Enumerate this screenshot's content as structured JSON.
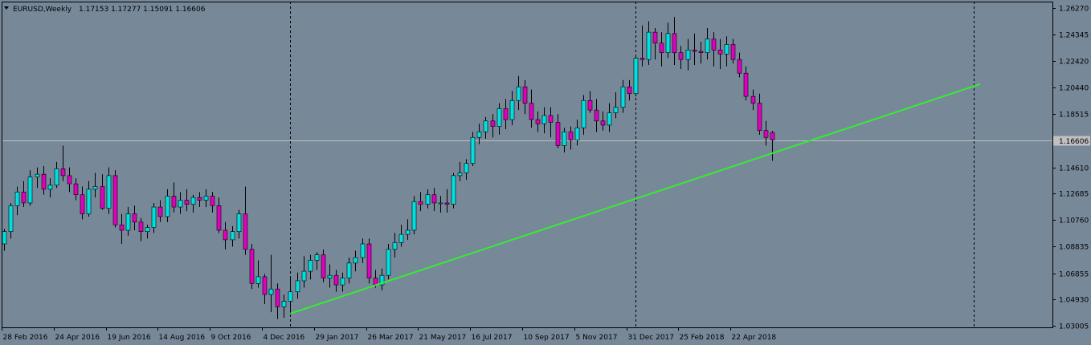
{
  "header": {
    "symbol": "EURUSD,Weekly",
    "ohlc": "1.17153 1.17277 1.15091 1.16606"
  },
  "colors": {
    "background": "#778899",
    "grid": "#000000",
    "bull": "#00e0e0",
    "bear": "#e000c0",
    "wick": "#000000",
    "trendline": "#33ee33",
    "price_line": "#c0c0c0",
    "axis_text": "#000000"
  },
  "chart_data": {
    "type": "candlestick",
    "title": "EURUSD,Weekly",
    "y_ticks": [
      "1.26270",
      "1.24345",
      "1.22420",
      "1.20440",
      "1.18515",
      "1.16606",
      "1.14610",
      "1.12685",
      "1.10760",
      "1.08835",
      "1.06855",
      "1.04930",
      "1.03005"
    ],
    "ylim": [
      1.0301,
      1.2627
    ],
    "current_price": 1.16606,
    "current_price_label": "1.16606",
    "x_ticks": [
      {
        "label": "28 Feb 2016",
        "index": 0
      },
      {
        "label": "24 Apr 2016",
        "index": 8
      },
      {
        "label": "19 Jun 2016",
        "index": 16
      },
      {
        "label": "14 Aug 2016",
        "index": 24
      },
      {
        "label": "9 Oct 2016",
        "index": 32
      },
      {
        "label": "4 Dec 2016",
        "index": 40
      },
      {
        "label": "29 Jan 2017",
        "index": 48
      },
      {
        "label": "26 Mar 2017",
        "index": 56
      },
      {
        "label": "21 May 2017",
        "index": 64
      },
      {
        "label": "16 Jul 2017",
        "index": 72
      },
      {
        "label": "10 Sep 2017",
        "index": 80
      },
      {
        "label": "5 Nov 2017",
        "index": 88
      },
      {
        "label": "31 Dec 2017",
        "index": 96
      },
      {
        "label": "25 Feb 2018",
        "index": 104
      },
      {
        "label": "22 Apr 2018",
        "index": 112
      }
    ],
    "period_separators": [
      44,
      97,
      149
    ],
    "trendline": {
      "from": {
        "index": 44,
        "price": 1.039
      },
      "to": {
        "index": 150,
        "price": 1.207
      }
    },
    "candles": [
      [
        1.09,
        1.101,
        1.085,
        1.099
      ],
      [
        1.099,
        1.12,
        1.094,
        1.118
      ],
      [
        1.118,
        1.132,
        1.111,
        1.128
      ],
      [
        1.128,
        1.136,
        1.117,
        1.12
      ],
      [
        1.12,
        1.144,
        1.118,
        1.139
      ],
      [
        1.139,
        1.146,
        1.131,
        1.141
      ],
      [
        1.141,
        1.147,
        1.126,
        1.13
      ],
      [
        1.13,
        1.138,
        1.124,
        1.133
      ],
      [
        1.133,
        1.15,
        1.131,
        1.145
      ],
      [
        1.145,
        1.162,
        1.136,
        1.14
      ],
      [
        1.14,
        1.146,
        1.128,
        1.134
      ],
      [
        1.134,
        1.138,
        1.122,
        1.126
      ],
      [
        1.126,
        1.132,
        1.108,
        1.112
      ],
      [
        1.112,
        1.136,
        1.11,
        1.13
      ],
      [
        1.13,
        1.142,
        1.124,
        1.132
      ],
      [
        1.132,
        1.141,
        1.115,
        1.116
      ],
      [
        1.116,
        1.146,
        1.112,
        1.14
      ],
      [
        1.14,
        1.144,
        1.102,
        1.104
      ],
      [
        1.104,
        1.112,
        1.09,
        1.1
      ],
      [
        1.1,
        1.117,
        1.096,
        1.112
      ],
      [
        1.112,
        1.118,
        1.1,
        1.106
      ],
      [
        1.106,
        1.109,
        1.092,
        1.099
      ],
      [
        1.099,
        1.104,
        1.094,
        1.102
      ],
      [
        1.102,
        1.12,
        1.098,
        1.117
      ],
      [
        1.117,
        1.122,
        1.106,
        1.11
      ],
      [
        1.11,
        1.13,
        1.106,
        1.125
      ],
      [
        1.125,
        1.135,
        1.113,
        1.117
      ],
      [
        1.117,
        1.128,
        1.112,
        1.122
      ],
      [
        1.122,
        1.13,
        1.114,
        1.119
      ],
      [
        1.119,
        1.126,
        1.113,
        1.124
      ],
      [
        1.124,
        1.128,
        1.117,
        1.122
      ],
      [
        1.122,
        1.13,
        1.117,
        1.125
      ],
      [
        1.125,
        1.128,
        1.113,
        1.118
      ],
      [
        1.118,
        1.124,
        1.098,
        1.1
      ],
      [
        1.1,
        1.106,
        1.086,
        1.093
      ],
      [
        1.093,
        1.103,
        1.088,
        1.099
      ],
      [
        1.099,
        1.115,
        1.094,
        1.112
      ],
      [
        1.112,
        1.132,
        1.082,
        1.086
      ],
      [
        1.086,
        1.09,
        1.057,
        1.061
      ],
      [
        1.061,
        1.078,
        1.058,
        1.066
      ],
      [
        1.066,
        1.068,
        1.046,
        1.053
      ],
      [
        1.053,
        1.082,
        1.04,
        1.057
      ],
      [
        1.057,
        1.061,
        1.035,
        1.044
      ],
      [
        1.044,
        1.053,
        1.036,
        1.048
      ],
      [
        1.048,
        1.066,
        1.039,
        1.055
      ],
      [
        1.055,
        1.069,
        1.05,
        1.063
      ],
      [
        1.063,
        1.081,
        1.058,
        1.07
      ],
      [
        1.07,
        1.082,
        1.064,
        1.078
      ],
      [
        1.078,
        1.084,
        1.071,
        1.082
      ],
      [
        1.082,
        1.086,
        1.062,
        1.065
      ],
      [
        1.065,
        1.075,
        1.058,
        1.067
      ],
      [
        1.067,
        1.071,
        1.055,
        1.06
      ],
      [
        1.06,
        1.069,
        1.055,
        1.065
      ],
      [
        1.065,
        1.08,
        1.061,
        1.076
      ],
      [
        1.076,
        1.085,
        1.07,
        1.08
      ],
      [
        1.08,
        1.094,
        1.076,
        1.09
      ],
      [
        1.09,
        1.094,
        1.061,
        1.065
      ],
      [
        1.065,
        1.071,
        1.058,
        1.06
      ],
      [
        1.06,
        1.072,
        1.056,
        1.067
      ],
      [
        1.067,
        1.09,
        1.064,
        1.086
      ],
      [
        1.086,
        1.098,
        1.08,
        1.091
      ],
      [
        1.091,
        1.104,
        1.088,
        1.097
      ],
      [
        1.097,
        1.108,
        1.093,
        1.1
      ],
      [
        1.1,
        1.125,
        1.097,
        1.121
      ],
      [
        1.121,
        1.128,
        1.114,
        1.119
      ],
      [
        1.119,
        1.13,
        1.116,
        1.126
      ],
      [
        1.126,
        1.131,
        1.114,
        1.12
      ],
      [
        1.12,
        1.125,
        1.113,
        1.12
      ],
      [
        1.12,
        1.13,
        1.113,
        1.119
      ],
      [
        1.119,
        1.142,
        1.116,
        1.14
      ],
      [
        1.14,
        1.15,
        1.136,
        1.142
      ],
      [
        1.142,
        1.152,
        1.137,
        1.149
      ],
      [
        1.149,
        1.172,
        1.147,
        1.168
      ],
      [
        1.168,
        1.178,
        1.163,
        1.172
      ],
      [
        1.172,
        1.183,
        1.167,
        1.18
      ],
      [
        1.18,
        1.185,
        1.168,
        1.176
      ],
      [
        1.176,
        1.193,
        1.17,
        1.189
      ],
      [
        1.189,
        1.196,
        1.174,
        1.181
      ],
      [
        1.181,
        1.202,
        1.177,
        1.195
      ],
      [
        1.195,
        1.213,
        1.188,
        1.205
      ],
      [
        1.205,
        1.21,
        1.185,
        1.193
      ],
      [
        1.193,
        1.203,
        1.175,
        1.181
      ],
      [
        1.181,
        1.187,
        1.172,
        1.178
      ],
      [
        1.178,
        1.19,
        1.171,
        1.184
      ],
      [
        1.184,
        1.19,
        1.168,
        1.179
      ],
      [
        1.179,
        1.185,
        1.16,
        1.162
      ],
      [
        1.162,
        1.175,
        1.157,
        1.172
      ],
      [
        1.172,
        1.176,
        1.159,
        1.166
      ],
      [
        1.166,
        1.181,
        1.162,
        1.175
      ],
      [
        1.175,
        1.199,
        1.17,
        1.195
      ],
      [
        1.195,
        1.202,
        1.186,
        1.188
      ],
      [
        1.188,
        1.196,
        1.172,
        1.18
      ],
      [
        1.18,
        1.187,
        1.173,
        1.177
      ],
      [
        1.177,
        1.193,
        1.172,
        1.186
      ],
      [
        1.186,
        1.201,
        1.182,
        1.19
      ],
      [
        1.19,
        1.21,
        1.186,
        1.205
      ],
      [
        1.205,
        1.21,
        1.195,
        1.2
      ],
      [
        1.2,
        1.228,
        1.198,
        1.226
      ],
      [
        1.226,
        1.25,
        1.22,
        1.225
      ],
      [
        1.225,
        1.253,
        1.221,
        1.245
      ],
      [
        1.245,
        1.248,
        1.225,
        1.237
      ],
      [
        1.237,
        1.245,
        1.22,
        1.23
      ],
      [
        1.23,
        1.252,
        1.226,
        1.244
      ],
      [
        1.244,
        1.256,
        1.221,
        1.23
      ],
      [
        1.23,
        1.235,
        1.218,
        1.225
      ],
      [
        1.225,
        1.24,
        1.217,
        1.232
      ],
      [
        1.232,
        1.244,
        1.221,
        1.231
      ],
      [
        1.231,
        1.238,
        1.222,
        1.23
      ],
      [
        1.23,
        1.248,
        1.225,
        1.24
      ],
      [
        1.24,
        1.245,
        1.22,
        1.232
      ],
      [
        1.232,
        1.24,
        1.218,
        1.229
      ],
      [
        1.229,
        1.242,
        1.22,
        1.236
      ],
      [
        1.236,
        1.24,
        1.222,
        1.225
      ],
      [
        1.225,
        1.23,
        1.212,
        1.215
      ],
      [
        1.215,
        1.22,
        1.195,
        1.198
      ],
      [
        1.198,
        1.203,
        1.188,
        1.193
      ],
      [
        1.193,
        1.2,
        1.17,
        1.173
      ],
      [
        1.173,
        1.18,
        1.162,
        1.168
      ],
      [
        1.17153,
        1.17277,
        1.15091,
        1.16606
      ]
    ]
  }
}
